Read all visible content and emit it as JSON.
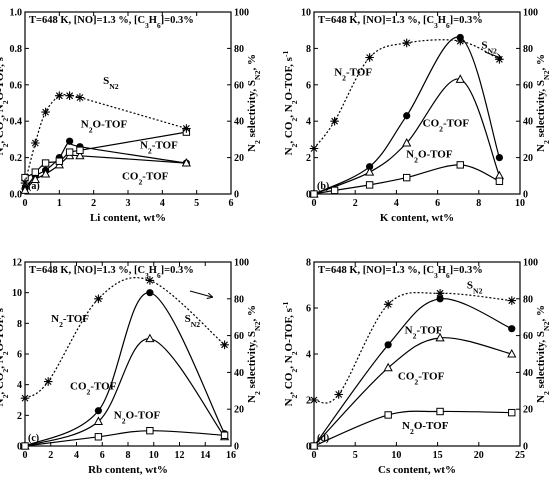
{
  "chart_data": [
    {
      "type": "line",
      "panel_label": "(a)",
      "title": "T=648 K, [NO]=1.3 %, [C3H6]=0.3%",
      "xlabel": "Li content, wt%",
      "ylabel": "N2, CO2, N2O-TOF, s-1",
      "y2label": "N2 selectivity, SN2, %",
      "xlim": [
        0,
        6
      ],
      "ylim": [
        0,
        1.0
      ],
      "y2lim": [
        0,
        100
      ],
      "xticks": [
        0,
        1,
        2,
        3,
        4,
        5,
        6
      ],
      "yticks": [
        0.0,
        0.2,
        0.4,
        0.6,
        0.8,
        1.0
      ],
      "y2ticks": [
        0,
        20,
        40,
        60,
        80,
        100
      ],
      "series": [
        {
          "name": "N2-TOF",
          "marker": "dot",
          "x": [
            0,
            0.3,
            0.6,
            1.0,
            1.3,
            1.6,
            4.7
          ],
          "y": [
            0.03,
            0.1,
            0.13,
            0.2,
            0.29,
            0.26,
            0.17
          ]
        },
        {
          "name": "CO2-TOF",
          "marker": "triangle",
          "x": [
            0,
            0.3,
            0.6,
            1.0,
            1.3,
            1.6,
            4.7
          ],
          "y": [
            0.02,
            0.08,
            0.11,
            0.16,
            0.21,
            0.21,
            0.17
          ]
        },
        {
          "name": "N2O-TOF",
          "marker": "square",
          "x": [
            0,
            0.3,
            0.6,
            1.0,
            1.3,
            1.6,
            4.7
          ],
          "y": [
            0.09,
            0.12,
            0.17,
            0.18,
            0.23,
            0.24,
            0.34
          ]
        },
        {
          "name": "SN2",
          "axis": "right",
          "marker": "star",
          "x": [
            0,
            0.3,
            0.6,
            1.0,
            1.3,
            1.6,
            4.7
          ],
          "y": [
            6,
            28,
            45,
            54,
            54,
            53,
            36
          ]
        }
      ],
      "annotations": [
        {
          "text": "SN2",
          "x": 2.5,
          "y": 0.605
        },
        {
          "text": "N2O-TOF",
          "x": 2.3,
          "y": 0.365
        },
        {
          "text": "N2-TOF",
          "x": 3.9,
          "y": 0.25
        },
        {
          "text": "CO2-TOF",
          "x": 3.5,
          "y": 0.08
        }
      ]
    },
    {
      "type": "line",
      "panel_label": "(b)",
      "title": "T=648 K, [NO]=1.3 %, [C3H6]=0.3%",
      "xlabel": "K content, wt%",
      "ylabel": "N2, CO2, N2O-TOF, s-1",
      "y2label": "N2 selectivity, SN2, %",
      "xlim": [
        0,
        10
      ],
      "ylim": [
        0,
        10
      ],
      "y2lim": [
        0,
        100
      ],
      "xticks": [
        0,
        2,
        4,
        6,
        8,
        10
      ],
      "yticks": [
        0,
        2,
        4,
        6,
        8,
        10
      ],
      "y2ticks": [
        0,
        20,
        40,
        60,
        80,
        100
      ],
      "series": [
        {
          "name": "N2-TOF",
          "marker": "dot",
          "x": [
            0,
            2.7,
            4.5,
            7.1,
            9.0
          ],
          "y": [
            0,
            1.5,
            4.3,
            8.6,
            2.0
          ]
        },
        {
          "name": "CO2-TOF",
          "marker": "triangle",
          "x": [
            0,
            2.7,
            4.5,
            7.1,
            9.0
          ],
          "y": [
            0,
            1.2,
            2.8,
            6.3,
            1.0
          ]
        },
        {
          "name": "N2O-TOF",
          "marker": "square",
          "x": [
            0,
            1.0,
            2.7,
            4.5,
            7.1,
            9.0
          ],
          "y": [
            0,
            0.2,
            0.5,
            0.9,
            1.6,
            0.7
          ]
        },
        {
          "name": "SN2",
          "axis": "right",
          "marker": "star",
          "x": [
            0,
            1.0,
            2.7,
            4.5,
            7.1,
            9.0
          ],
          "y": [
            25,
            40,
            75,
            83,
            84,
            74
          ]
        }
      ],
      "annotations": [
        {
          "text": "SN2",
          "x": 8.5,
          "y": 8.0
        },
        {
          "text": "N2-TOF",
          "x": 1.9,
          "y": 6.5
        },
        {
          "text": "CO2-TOF",
          "x": 6.4,
          "y": 3.7
        },
        {
          "text": "N2O-TOF",
          "x": 5.6,
          "y": 2.0
        }
      ]
    },
    {
      "type": "line",
      "panel_label": "(c)",
      "title": "T=648 K, [NO]=1.3 %, [C3H6]=0.3%",
      "xlabel": "Rb content, wt%",
      "ylabel": "N2, CO2, N2O-TOF, s-1",
      "y2label": "N2 selectivity, SN2, %",
      "xlim": [
        0,
        16
      ],
      "ylim": [
        0,
        12
      ],
      "y2lim": [
        0,
        100
      ],
      "xticks": [
        0,
        2,
        4,
        6,
        8,
        10,
        12,
        14,
        16
      ],
      "yticks": [
        0,
        2,
        4,
        6,
        8,
        10,
        12
      ],
      "y2ticks": [
        0,
        20,
        40,
        60,
        80,
        100
      ],
      "series": [
        {
          "name": "N2-TOF",
          "marker": "dot",
          "x": [
            0,
            5.7,
            9.7,
            15.5
          ],
          "y": [
            0,
            2.3,
            10.0,
            0.8
          ]
        },
        {
          "name": "CO2-TOF",
          "marker": "triangle",
          "x": [
            0,
            5.7,
            9.7,
            15.5
          ],
          "y": [
            0,
            1.6,
            7.0,
            0.6
          ]
        },
        {
          "name": "N2O-TOF",
          "marker": "square",
          "x": [
            0,
            5.7,
            9.7,
            15.5
          ],
          "y": [
            0,
            0.6,
            1.0,
            0.7
          ]
        },
        {
          "name": "SN2",
          "axis": "right",
          "marker": "star",
          "x": [
            0,
            1.8,
            5.7,
            9.7,
            15.5
          ],
          "y": [
            26,
            35,
            80,
            90,
            55
          ]
        }
      ],
      "annotations": [
        {
          "text": "SN2",
          "x": 13.0,
          "y": 8.1
        },
        {
          "text": "N2-TOF",
          "x": 3.5,
          "y": 8.1
        },
        {
          "text": "CO2-TOF",
          "x": 5.3,
          "y": 3.7
        },
        {
          "text": "N2O-TOF",
          "x": 8.7,
          "y": 1.8
        }
      ]
    },
    {
      "type": "line",
      "panel_label": "(d)",
      "title": "T=648 K, [NO]=1.3 %, [C3H6]=0.3%",
      "xlabel": "Cs content, wt%",
      "ylabel": "N2, CO2, N2O-TOF, s-1",
      "y2label": "N2 selectivity, SN2, %",
      "xlim": [
        0,
        25
      ],
      "ylim": [
        0,
        8
      ],
      "y2lim": [
        0,
        100
      ],
      "xticks": [
        0,
        5,
        10,
        15,
        20,
        25
      ],
      "yticks": [
        0,
        2,
        4,
        6,
        8
      ],
      "y2ticks": [
        0,
        20,
        40,
        60,
        80,
        100
      ],
      "series": [
        {
          "name": "N2-TOF",
          "marker": "dot",
          "x": [
            0,
            9.0,
            15.3,
            24.0
          ],
          "y": [
            0,
            4.4,
            6.4,
            5.1
          ]
        },
        {
          "name": "CO2-TOF",
          "marker": "triangle",
          "x": [
            0,
            9.0,
            15.3,
            24.0
          ],
          "y": [
            0,
            3.4,
            4.7,
            4.0
          ]
        },
        {
          "name": "N2O-TOF",
          "marker": "square",
          "x": [
            0,
            9.0,
            15.3,
            24.0
          ],
          "y": [
            0,
            1.35,
            1.5,
            1.45
          ]
        },
        {
          "name": "SN2",
          "axis": "right",
          "marker": "star",
          "x": [
            0,
            3.0,
            9.0,
            15.3,
            24.0
          ],
          "y": [
            25,
            28,
            77,
            83,
            79
          ]
        }
      ],
      "annotations": [
        {
          "text": "SN2",
          "x": 19.5,
          "y": 6.85
        },
        {
          "text": "N2-TOF",
          "x": 13.3,
          "y": 4.9
        },
        {
          "text": "CO2-TOF",
          "x": 13.0,
          "y": 2.9
        },
        {
          "text": "N2O-TOF",
          "x": 13.5,
          "y": 0.75
        }
      ]
    }
  ]
}
